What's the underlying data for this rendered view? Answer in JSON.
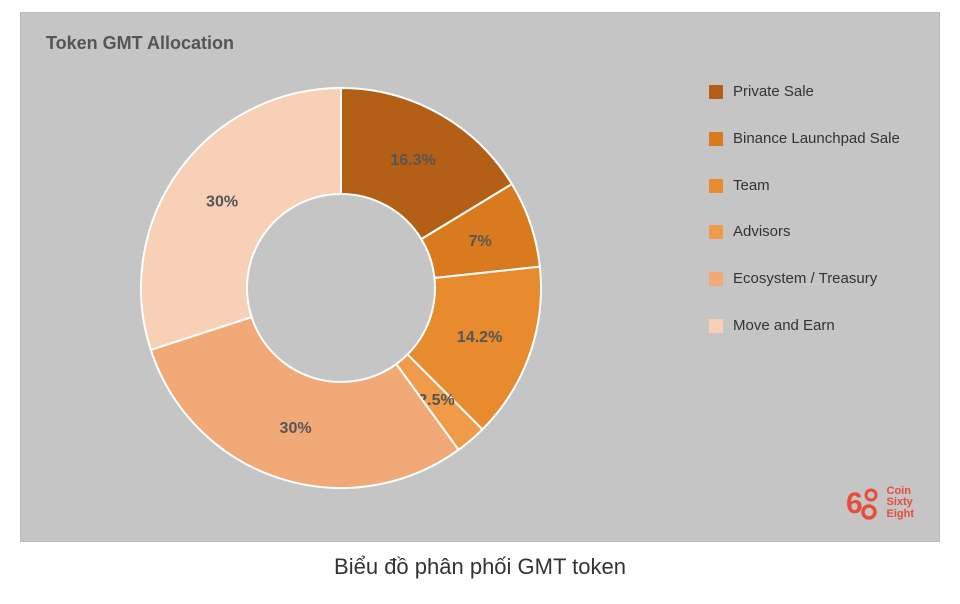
{
  "title": "Token GMT Allocation",
  "caption": "Biểu đồ phân phối GMT token",
  "chart": {
    "type": "donut",
    "background_color": "#c5c5c5",
    "inner_radius_ratio": 0.47,
    "label_fontsize": 16,
    "label_color": "#555555",
    "slices": [
      {
        "label": "Private Sale",
        "value": 16.3,
        "display": "16.3%",
        "color": "#b36016"
      },
      {
        "label": "Binance Launchpad Sale",
        "value": 7,
        "display": "7%",
        "color": "#d97a1f"
      },
      {
        "label": "Team",
        "value": 14.2,
        "display": "14.2%",
        "color": "#e88a2e"
      },
      {
        "label": "Advisors",
        "value": 2.5,
        "display": "2.5%",
        "color": "#ef9b4a"
      },
      {
        "label": "Ecosystem / Treasury",
        "value": 30,
        "display": "30%",
        "color": "#f2a978"
      },
      {
        "label": "Move and Earn",
        "value": 30,
        "display": "30%",
        "color": "#f7d0b5"
      }
    ]
  },
  "logo": {
    "brand": "Coin Sixty Eight",
    "brand_lines": [
      "Coin",
      "Sixty",
      "Eight"
    ],
    "color": "#e74c3c"
  }
}
